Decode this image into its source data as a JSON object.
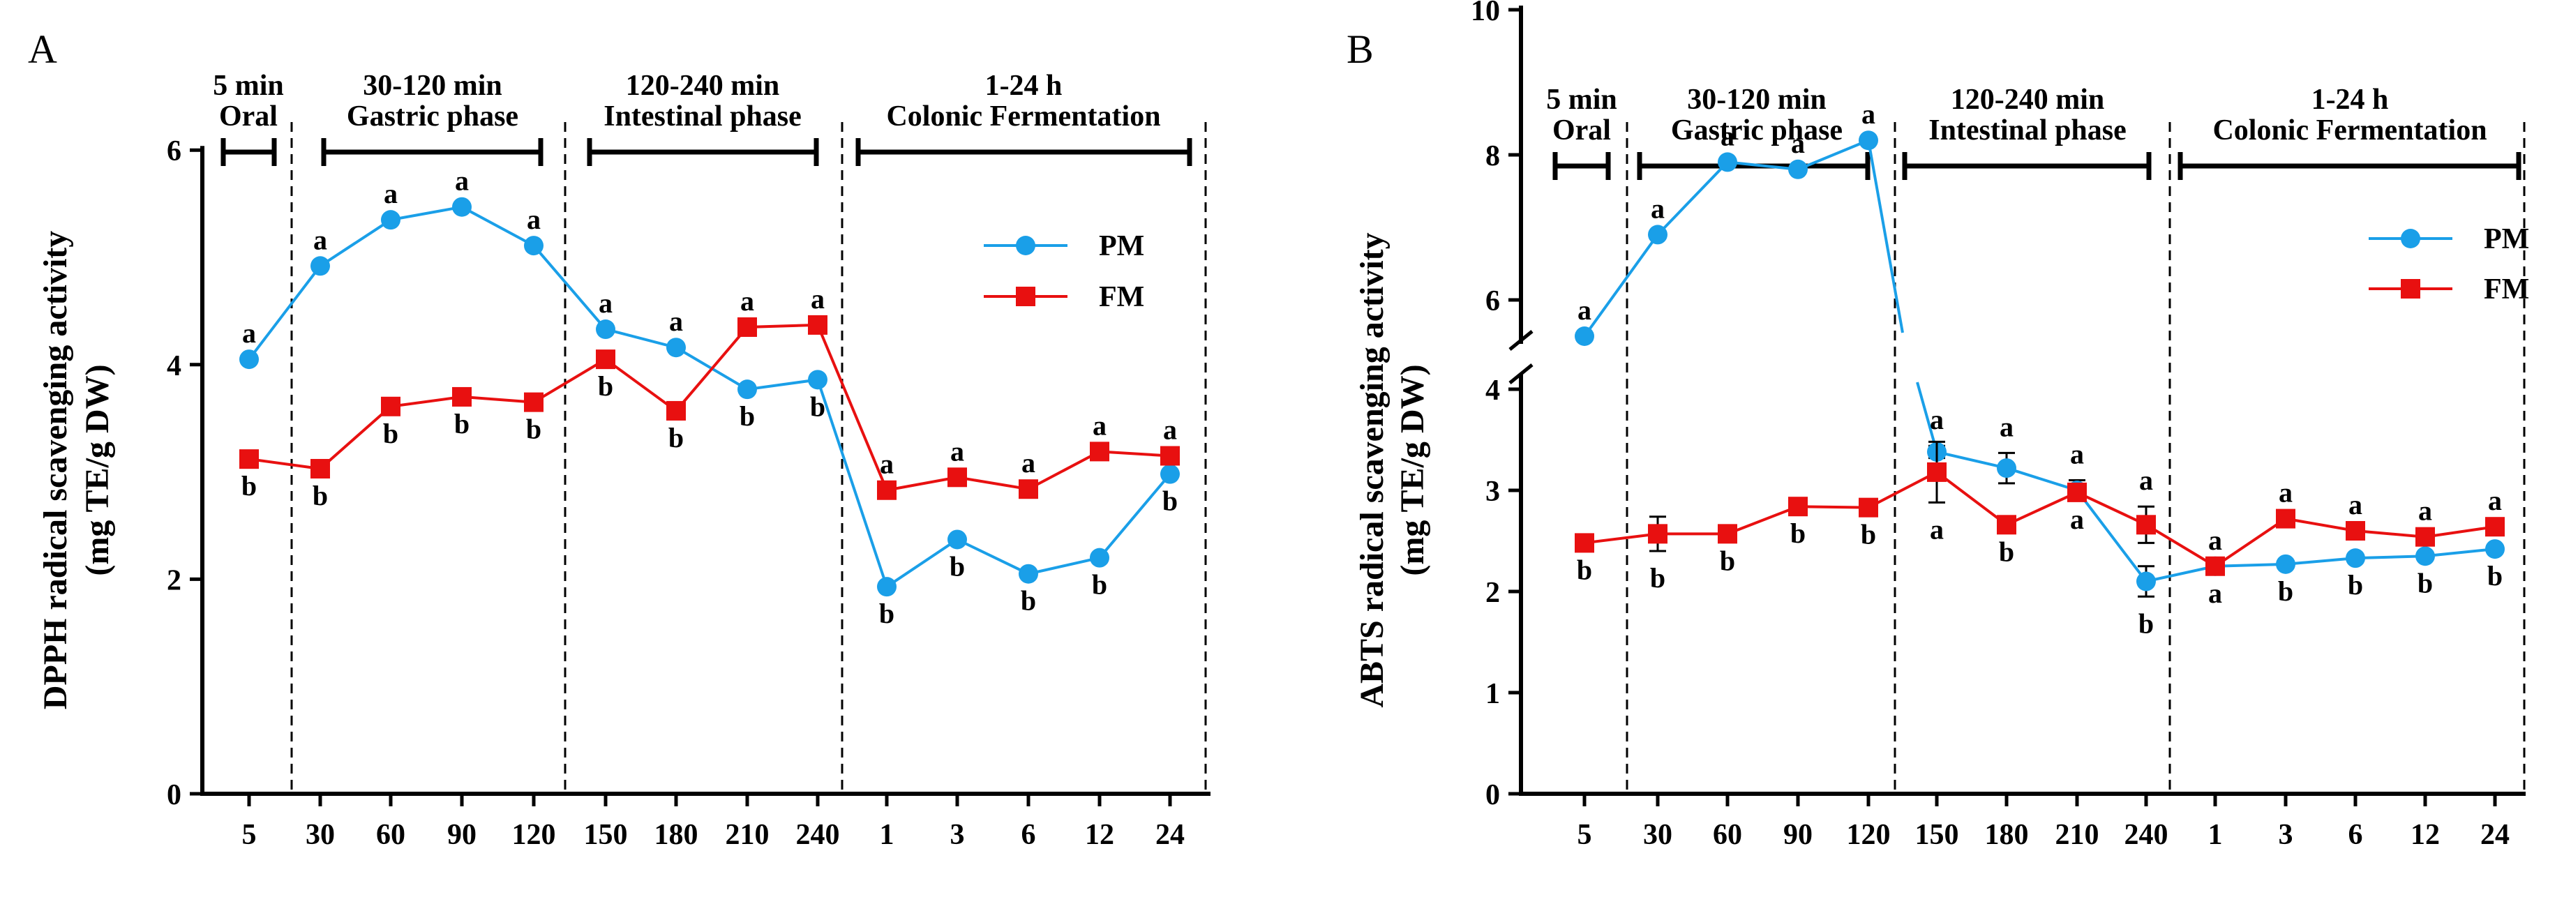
{
  "panels": [
    {
      "letter": "A",
      "phases": [
        {
          "line1": "5 min",
          "line2": "Oral"
        },
        {
          "line1": "30-120 min",
          "line2": "Gastric phase"
        },
        {
          "line1": "120-240 min",
          "line2": "Intestinal phase"
        },
        {
          "line1": "1-24 h",
          "line2": "Colonic Fermentation"
        }
      ],
      "legend": [
        {
          "name": "PM",
          "color": "#1a9fe8"
        },
        {
          "name": "FM",
          "color": "#e81010"
        }
      ],
      "chart_data": {
        "type": "line",
        "title": "",
        "xlabel": "",
        "ylabel_line1": "DPPH radical scavenging activity",
        "ylabel_line2": "(mg TE/g DW)",
        "categories": [
          "5",
          "30",
          "60",
          "90",
          "120",
          "150",
          "180",
          "210",
          "240",
          "1",
          "3",
          "6",
          "12",
          "24"
        ],
        "ylim": [
          0,
          6
        ],
        "yticks": [
          "0",
          "2",
          "4",
          "6"
        ],
        "series": [
          {
            "name": "PM",
            "color": "#1a9fe8",
            "marker": "circle",
            "values": [
              4.05,
              4.92,
              5.35,
              5.47,
              5.11,
              4.33,
              4.16,
              3.77,
              3.86,
              1.93,
              2.37,
              2.05,
              2.2,
              2.98
            ],
            "letters": [
              "a",
              "a",
              "a",
              "a",
              "a",
              "a",
              "a",
              "b",
              "b",
              "b",
              "b",
              "b",
              "b",
              "b"
            ]
          },
          {
            "name": "FM",
            "color": "#e81010",
            "marker": "square",
            "values": [
              3.12,
              3.03,
              3.61,
              3.7,
              3.65,
              4.05,
              3.57,
              4.35,
              4.37,
              2.83,
              2.95,
              2.84,
              3.19,
              3.15
            ],
            "letters": [
              "b",
              "b",
              "b",
              "b",
              "b",
              "b",
              "b",
              "a",
              "a",
              "a",
              "a",
              "a",
              "a",
              "a"
            ]
          }
        ]
      }
    },
    {
      "letter": "B",
      "phases": [
        {
          "line1": "5 min",
          "line2": "Oral"
        },
        {
          "line1": "30-120 min",
          "line2": "Gastric phase"
        },
        {
          "line1": "120-240 min",
          "line2": "Intestinal phase"
        },
        {
          "line1": "1-24 h",
          "line2": "Colonic Fermentation"
        }
      ],
      "legend": [
        {
          "name": "PM",
          "color": "#1a9fe8"
        },
        {
          "name": "FM",
          "color": "#e81010"
        }
      ],
      "chart_data": {
        "type": "line",
        "title": "",
        "xlabel": "",
        "ylabel_line1": "ABTS radical scavenging activity",
        "ylabel_line2": "(mg TE/g DW)",
        "categories": [
          "5",
          "30",
          "60",
          "90",
          "120",
          "150",
          "180",
          "210",
          "240",
          "1",
          "3",
          "6",
          "12",
          "24"
        ],
        "ylim": [
          0,
          10
        ],
        "axis_break": [
          4,
          5
        ],
        "yticks": [
          "0",
          "1",
          "2",
          "3",
          "4",
          "6",
          "8",
          "10"
        ],
        "series": [
          {
            "name": "PM",
            "color": "#1a9fe8",
            "marker": "circle",
            "values": [
              5.5,
              6.9,
              7.9,
              7.8,
              8.2,
              3.38,
              3.22,
              3.0,
              2.1,
              2.25,
              2.27,
              2.33,
              2.35,
              2.42
            ],
            "errors": [
              0,
              0,
              0,
              0,
              0,
              0.06,
              0.15,
              0.1,
              0.15,
              0,
              0,
              0,
              0,
              0
            ],
            "letters": [
              "a",
              "a",
              "a",
              "a",
              "a",
              "a",
              "a",
              "a",
              "b",
              "a",
              "b",
              "b",
              "b",
              "b"
            ]
          },
          {
            "name": "FM",
            "color": "#e81010",
            "marker": "square",
            "values": [
              2.48,
              2.57,
              2.57,
              2.84,
              2.83,
              3.18,
              2.66,
              2.98,
              2.66,
              2.25,
              2.72,
              2.6,
              2.54,
              2.64
            ],
            "errors": [
              0,
              0.17,
              0,
              0,
              0,
              0.3,
              0,
              0,
              0.18,
              0,
              0,
              0,
              0,
              0
            ],
            "letters": [
              "b",
              "b",
              "b",
              "b",
              "b",
              "a",
              "b",
              "a",
              "a",
              "a",
              "a",
              "a",
              "a",
              "a"
            ]
          }
        ]
      }
    }
  ]
}
